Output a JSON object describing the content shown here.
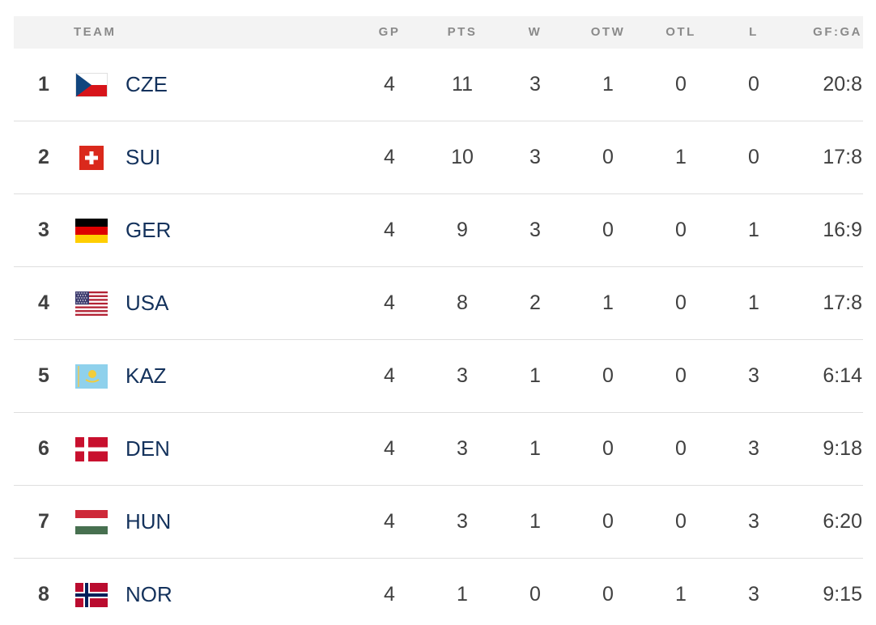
{
  "header": {
    "team": "TEAM",
    "gp": "GP",
    "pts": "PTS",
    "w": "W",
    "otw": "OTW",
    "otl": "OTL",
    "l": "L",
    "gfga": "GF:GA"
  },
  "rows": [
    {
      "rank": "1",
      "team": "CZE",
      "flag": "czech-flag-icon",
      "gp": "4",
      "pts": "11",
      "w": "3",
      "otw": "1",
      "otl": "0",
      "l": "0",
      "gfga": "20:8"
    },
    {
      "rank": "2",
      "team": "SUI",
      "flag": "swiss-flag-icon",
      "gp": "4",
      "pts": "10",
      "w": "3",
      "otw": "0",
      "otl": "1",
      "l": "0",
      "gfga": "17:8"
    },
    {
      "rank": "3",
      "team": "GER",
      "flag": "german-flag-icon",
      "gp": "4",
      "pts": "9",
      "w": "3",
      "otw": "0",
      "otl": "0",
      "l": "1",
      "gfga": "16:9"
    },
    {
      "rank": "4",
      "team": "USA",
      "flag": "usa-flag-icon",
      "gp": "4",
      "pts": "8",
      "w": "2",
      "otw": "1",
      "otl": "0",
      "l": "1",
      "gfga": "17:8"
    },
    {
      "rank": "5",
      "team": "KAZ",
      "flag": "kazakh-flag-icon",
      "gp": "4",
      "pts": "3",
      "w": "1",
      "otw": "0",
      "otl": "0",
      "l": "3",
      "gfga": "6:14"
    },
    {
      "rank": "6",
      "team": "DEN",
      "flag": "danish-flag-icon",
      "gp": "4",
      "pts": "3",
      "w": "1",
      "otw": "0",
      "otl": "0",
      "l": "3",
      "gfga": "9:18"
    },
    {
      "rank": "7",
      "team": "HUN",
      "flag": "hungarian-flag-icon",
      "gp": "4",
      "pts": "3",
      "w": "1",
      "otw": "0",
      "otl": "0",
      "l": "3",
      "gfga": "6:20"
    },
    {
      "rank": "8",
      "team": "NOR",
      "flag": "norwegian-flag-icon",
      "gp": "4",
      "pts": "1",
      "w": "0",
      "otw": "0",
      "otl": "1",
      "l": "3",
      "gfga": "9:15"
    }
  ],
  "colors": {
    "team_text": "#14325c",
    "header_bg": "#f3f3f3",
    "header_text": "#8a8a8a",
    "divider": "#dedede"
  }
}
